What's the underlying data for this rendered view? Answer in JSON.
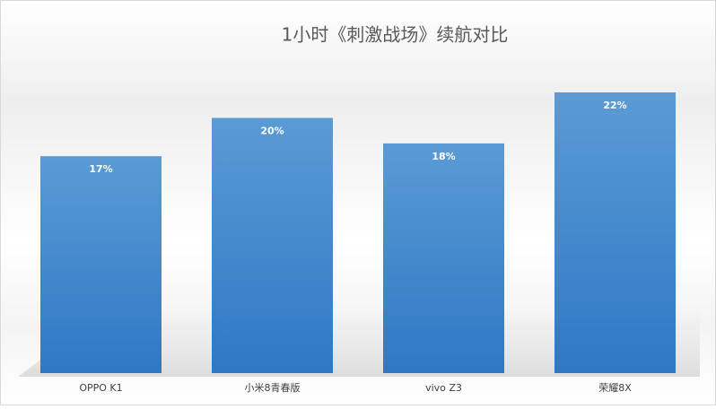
{
  "chart_data": {
    "type": "bar",
    "title": "1小时《刺激战场》续航对比",
    "categories": [
      "OPPO K1",
      "小米8青春版",
      "vivo Z3",
      "荣耀8X"
    ],
    "values": [
      17,
      20,
      18,
      22
    ],
    "value_labels": [
      "17%",
      "20%",
      "18%",
      "22%"
    ],
    "color": "#5b9bd5"
  }
}
